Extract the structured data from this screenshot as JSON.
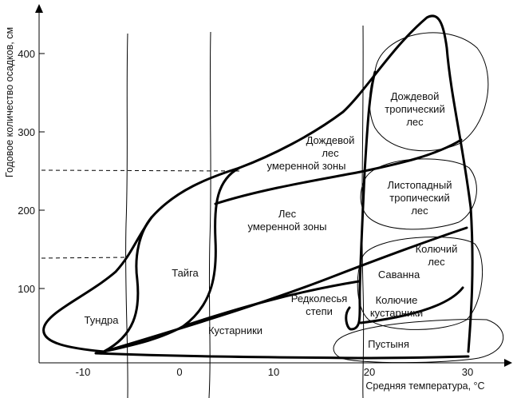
{
  "axes": {
    "x_title": "Средняя температура, °С",
    "y_title": "Годовое количество осадков, см",
    "x_ticks": [
      "-10",
      "0",
      "10",
      "20",
      "30"
    ],
    "y_ticks": [
      "100",
      "200",
      "300",
      "400"
    ]
  },
  "biomes": {
    "tundra": "Тундра",
    "taiga": "Тайга",
    "temperate_forest": [
      "Лес",
      "умеренной зоны"
    ],
    "temperate_rainforest": [
      "Дождевой",
      "лес",
      "умеренной зоны"
    ],
    "shrubland": "Кустарники",
    "woodland_steppe": [
      "Редколесья",
      "степи"
    ],
    "tropical_rainforest": [
      "Дождевой",
      "тропический",
      "лес"
    ],
    "tropical_deciduous": [
      "Листопадный",
      "тропический",
      "лес"
    ],
    "thorn_forest": [
      "Колючий",
      "лес"
    ],
    "savanna": "Саванна",
    "thorn_scrub": [
      "Колючие",
      "кустарники"
    ],
    "desert": "Пустыня"
  }
}
